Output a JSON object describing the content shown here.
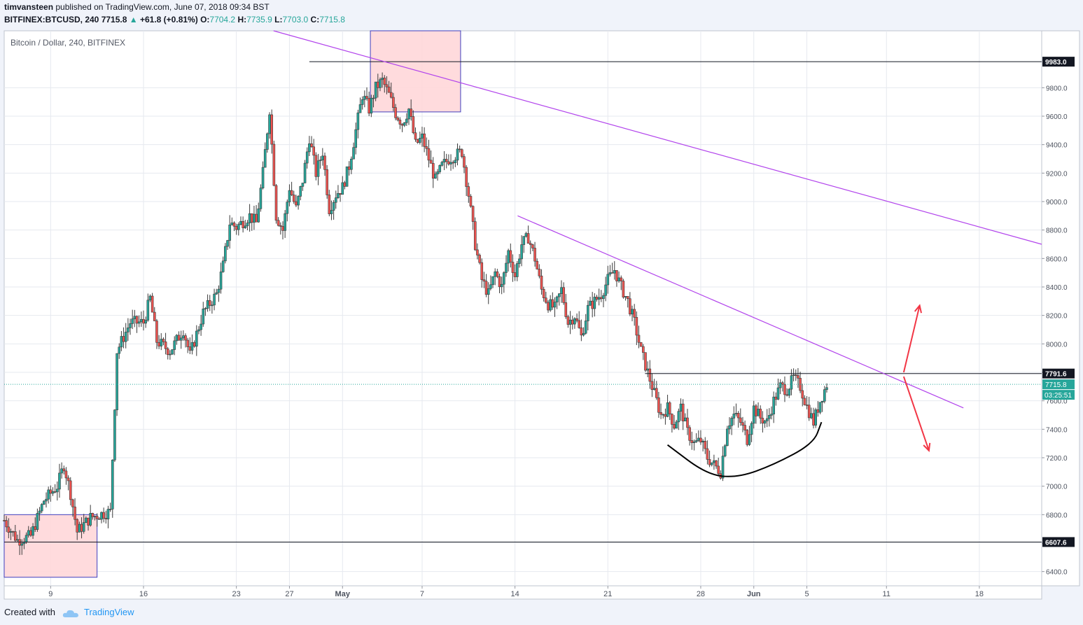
{
  "header": {
    "user": "timvansteen",
    "published": "published on TradingView.com, June 07, 2018 09:34 BST",
    "symbol": "BITFINEX:BTCUSD, 240",
    "last": "7715.8",
    "change_arrow": "▲",
    "change": "+61.8 (+0.81%)",
    "o_label": "O:",
    "o_val": "7704.2",
    "h_label": "H:",
    "h_val": "7735.9",
    "l_label": "L:",
    "l_val": "7703.0",
    "c_label": "C:",
    "c_val": "7715.8"
  },
  "footer": {
    "created_with": "Created with",
    "brand": "TradingView",
    "logo_icon": "cloud-icon"
  },
  "colors": {
    "up": "#26a69a",
    "down": "#ef5350",
    "trendline": "#b244ec",
    "zone_fill": "#ffd7d9",
    "zone_border": "#3f3fbf",
    "arrow": "#f23645",
    "grid": "#e6e9ef"
  },
  "chart_data": {
    "type": "candlestick",
    "title": "Bitcoin / Dollar, 240, BITFINEX",
    "ylim": [
      6300,
      10200
    ],
    "y_ticks": [
      6400,
      6600,
      6800,
      7000,
      7200,
      7400,
      7600,
      7800,
      8000,
      8200,
      8400,
      8600,
      8800,
      9000,
      9200,
      9400,
      9600,
      9800
    ],
    "y_tick_labels": [
      "6400.0",
      "6600.0",
      "6800.0",
      "7000.0",
      "7200.0",
      "7400.0",
      "7600.0",
      "7800.0",
      "8000.0",
      "8200.0",
      "8400.0",
      "8600.0",
      "8800.0",
      "9000.0",
      "9200.0",
      "9400.0",
      "9600.0",
      "9800.0"
    ],
    "x_ticks": [
      "9",
      "16",
      "23",
      "27",
      "May",
      "7",
      "14",
      "21",
      "28",
      "Jun",
      "5",
      "11",
      "18"
    ],
    "x_tick_days": [
      9,
      16,
      23,
      27,
      31,
      37,
      44,
      51,
      58,
      62,
      66,
      72,
      79
    ],
    "day_range": [
      5.5,
      83.7
    ],
    "last_day": 67.5,
    "price_path": [
      [
        5.5,
        6760
      ],
      [
        6.5,
        6620
      ],
      [
        7.5,
        6650
      ],
      [
        8.5,
        6900
      ],
      [
        9.5,
        7000
      ],
      [
        10.0,
        7150
      ],
      [
        10.5,
        6950
      ],
      [
        11.0,
        6680
      ],
      [
        12.0,
        6780
      ],
      [
        13.0,
        6810
      ],
      [
        13.5,
        6820
      ],
      [
        14.0,
        7950
      ],
      [
        14.5,
        8050
      ],
      [
        15.0,
        8150
      ],
      [
        16.0,
        8150
      ],
      [
        16.5,
        8320
      ],
      [
        17.0,
        8020
      ],
      [
        18.0,
        7950
      ],
      [
        19.0,
        8100
      ],
      [
        19.5,
        7920
      ],
      [
        20.5,
        8220
      ],
      [
        21.5,
        8350
      ],
      [
        22.0,
        8550
      ],
      [
        22.5,
        8850
      ],
      [
        23.0,
        8820
      ],
      [
        24.0,
        8900
      ],
      [
        24.5,
        8850
      ],
      [
        25.0,
        9200
      ],
      [
        25.5,
        9650
      ],
      [
        26.0,
        8900
      ],
      [
        26.5,
        8800
      ],
      [
        27.0,
        9100
      ],
      [
        27.5,
        8950
      ],
      [
        28.0,
        9150
      ],
      [
        28.5,
        9450
      ],
      [
        29.0,
        9200
      ],
      [
        29.5,
        9350
      ],
      [
        30.0,
        8950
      ],
      [
        30.5,
        9050
      ],
      [
        31.0,
        9100
      ],
      [
        31.5,
        9250
      ],
      [
        32.0,
        9500
      ],
      [
        32.5,
        9750
      ],
      [
        33.0,
        9650
      ],
      [
        33.5,
        9800
      ],
      [
        34.0,
        9850
      ],
      [
        34.5,
        9750
      ],
      [
        35.0,
        9620
      ],
      [
        35.5,
        9550
      ],
      [
        36.0,
        9650
      ],
      [
        36.5,
        9400
      ],
      [
        37.0,
        9450
      ],
      [
        37.5,
        9300
      ],
      [
        38.0,
        9150
      ],
      [
        38.5,
        9250
      ],
      [
        39.0,
        9300
      ],
      [
        40.0,
        9350
      ],
      [
        40.5,
        9050
      ],
      [
        41.0,
        8700
      ],
      [
        41.5,
        8450
      ],
      [
        42.0,
        8350
      ],
      [
        42.5,
        8500
      ],
      [
        43.0,
        8400
      ],
      [
        43.5,
        8650
      ],
      [
        44.0,
        8480
      ],
      [
        44.5,
        8700
      ],
      [
        45.0,
        8750
      ],
      [
        45.5,
        8600
      ],
      [
        46.0,
        8380
      ],
      [
        46.5,
        8280
      ],
      [
        47.0,
        8250
      ],
      [
        47.5,
        8380
      ],
      [
        48.0,
        8150
      ],
      [
        48.5,
        8200
      ],
      [
        49.0,
        8050
      ],
      [
        49.5,
        8250
      ],
      [
        50.0,
        8300
      ],
      [
        50.5,
        8350
      ],
      [
        51.0,
        8450
      ],
      [
        51.5,
        8520
      ],
      [
        52.0,
        8400
      ],
      [
        52.5,
        8300
      ],
      [
        53.0,
        8150
      ],
      [
        53.5,
        7950
      ],
      [
        54.0,
        7800
      ],
      [
        54.5,
        7650
      ],
      [
        55.0,
        7500
      ],
      [
        55.5,
        7550
      ],
      [
        56.0,
        7430
      ],
      [
        56.5,
        7550
      ],
      [
        57.0,
        7380
      ],
      [
        57.5,
        7300
      ],
      [
        58.0,
        7320
      ],
      [
        58.5,
        7200
      ],
      [
        59.0,
        7150
      ],
      [
        59.5,
        7100
      ],
      [
        60.0,
        7430
      ],
      [
        60.5,
        7500
      ],
      [
        61.0,
        7450
      ],
      [
        61.5,
        7330
      ],
      [
        62.0,
        7550
      ],
      [
        62.5,
        7480
      ],
      [
        63.0,
        7450
      ],
      [
        63.5,
        7600
      ],
      [
        64.0,
        7700
      ],
      [
        64.5,
        7680
      ],
      [
        65.0,
        7760
      ],
      [
        65.5,
        7700
      ],
      [
        66.0,
        7560
      ],
      [
        66.5,
        7450
      ],
      [
        67.0,
        7600
      ],
      [
        67.5,
        7715.8
      ]
    ],
    "horizontal_lines": [
      {
        "price": 9983.0,
        "label": "9983.0",
        "start_day": 28.5
      },
      {
        "price": 7791.6,
        "label": "7791.6",
        "start_day": 53.8
      },
      {
        "price": 6607.6,
        "label": "6607.6",
        "start_day": 5.5
      }
    ],
    "last_price_label": "7715.8",
    "countdown_label": "03:25:51",
    "trendlines": [
      {
        "from": [
          25.8,
          10200
        ],
        "to": [
          83.7,
          8700
        ]
      },
      {
        "from": [
          44.2,
          8900
        ],
        "to": [
          77.8,
          7550
        ]
      }
    ],
    "zones": [
      {
        "d1": 5.5,
        "d2": 12.5,
        "p1": 6800,
        "p2": 6360
      },
      {
        "d1": 33.1,
        "d2": 39.9,
        "p1": 10200,
        "p2": 9630
      }
    ],
    "curve_days": [
      55.5,
      58.5,
      60.8,
      63.5,
      66.5,
      67.1
    ],
    "curve_prices": [
      7290,
      7080,
      7060,
      7150,
      7300,
      7450
    ],
    "arrows": [
      {
        "from": [
          73.3,
          7800
        ],
        "to": [
          74.5,
          8270
        ]
      },
      {
        "from": [
          73.3,
          7770
        ],
        "to": [
          75.2,
          7250
        ]
      }
    ]
  }
}
